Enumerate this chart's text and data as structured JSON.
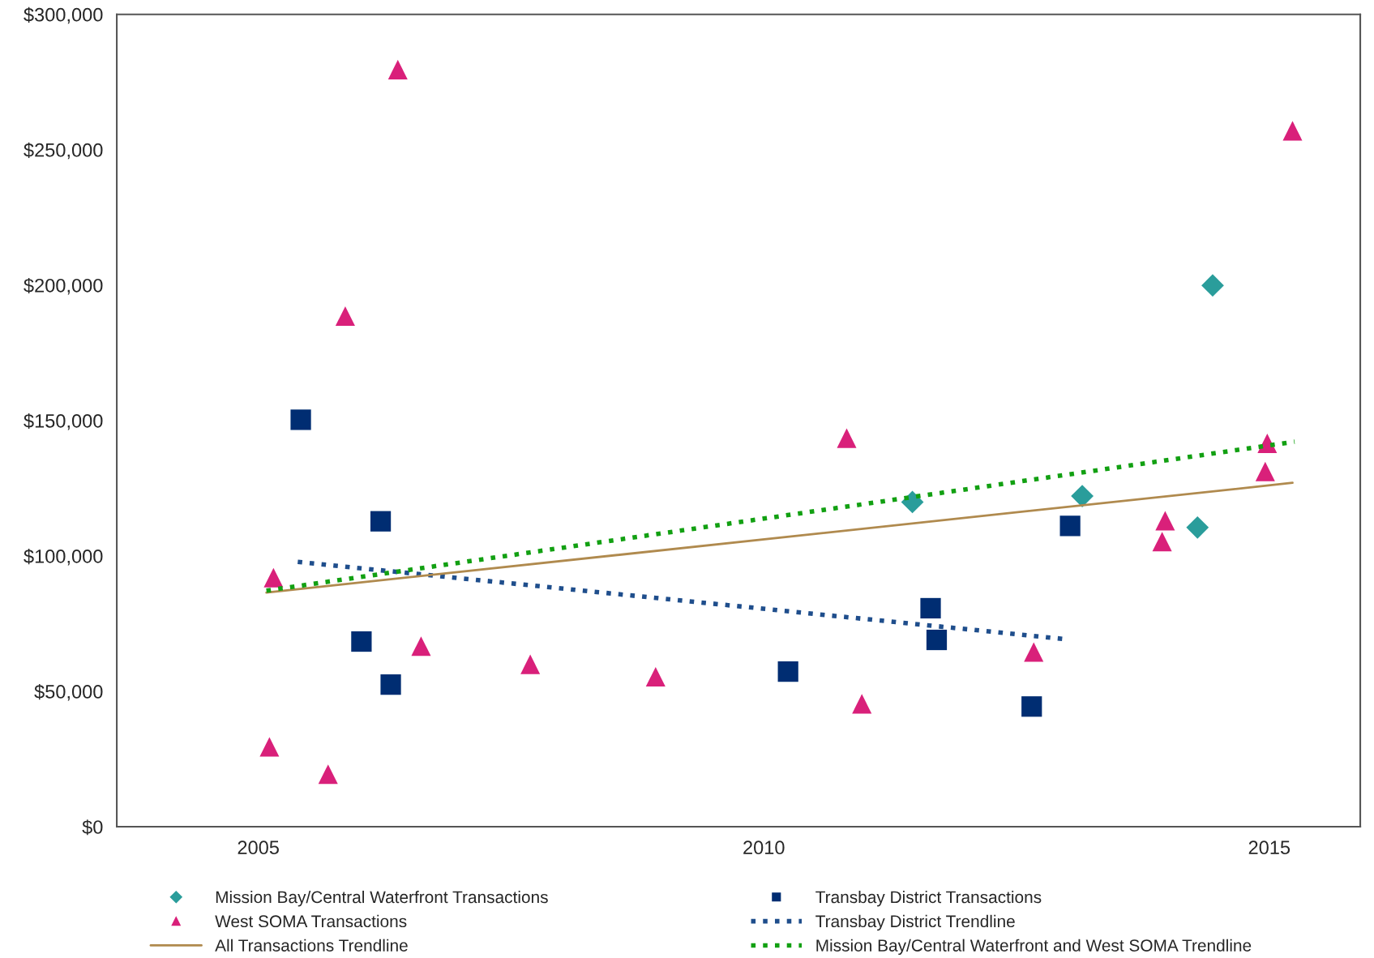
{
  "chart_data": {
    "type": "scatter",
    "xlim": [
      2003.6,
      2015.9
    ],
    "xticks": [
      2005,
      2010,
      2015
    ],
    "ylim": [
      0,
      300000
    ],
    "yticks": [
      {
        "value": 0,
        "label": "$0"
      },
      {
        "value": 50000,
        "label": "$50,000"
      },
      {
        "value": 100000,
        "label": "$100,000"
      },
      {
        "value": 150000,
        "label": "$150,000"
      },
      {
        "value": 200000,
        "label": "$200,000"
      },
      {
        "value": 250000,
        "label": "$250,000"
      },
      {
        "value": 300000,
        "label": "$300,000"
      }
    ],
    "grid": false,
    "legend": "bottom",
    "series": [
      {
        "name": "Mission Bay/Central Waterfront Transactions",
        "type": "scatter",
        "marker": "diamond",
        "color": "#2a9d9b",
        "x": [
          2011.47,
          2013.15,
          2014.29,
          2014.44
        ],
        "values": [
          119900,
          122100,
          110500,
          199900
        ]
      },
      {
        "name": "Transbay District Transactions",
        "type": "scatter",
        "marker": "square",
        "color": "#002d72",
        "x": [
          2005.42,
          2006.02,
          2006.21,
          2006.31,
          2010.24,
          2011.65,
          2011.71,
          2012.65,
          2013.03
        ],
        "values": [
          150300,
          68400,
          112800,
          52500,
          57300,
          80700,
          69000,
          44400,
          111100
        ]
      },
      {
        "name": "West SOMA Transactions",
        "type": "scatter",
        "marker": "triangle",
        "color": "#d9207a",
        "x": [
          2005.11,
          2005.69,
          2005.15,
          2005.86,
          2006.38,
          2006.61,
          2007.69,
          2008.93,
          2010.82,
          2010.97,
          2012.67,
          2013.94,
          2013.97,
          2014.96,
          2014.98,
          2015.23
        ],
        "values": [
          29500,
          19400,
          92000,
          188600,
          279600,
          66700,
          60000,
          55400,
          143500,
          45400,
          64500,
          105300,
          113000,
          131200,
          141600,
          257000
        ]
      },
      {
        "name": "Transbay District Trendline",
        "type": "line",
        "line_style": "dotted",
        "color": "#1f4e8c",
        "x": [
          2005.39,
          2012.98
        ],
        "values": [
          97800,
          69300
        ]
      },
      {
        "name": "All Transactions Trendline",
        "type": "line",
        "line_style": "solid",
        "color": "#b08a4e",
        "x": [
          2005.08,
          2015.23
        ],
        "values": [
          86500,
          127000
        ]
      },
      {
        "name": "Mission Bay/Central Waterfront and West SOMA Trendline",
        "type": "line",
        "line_style": "dotted",
        "color": "#12a012",
        "x": [
          2005.08,
          2015.25
        ],
        "values": [
          87200,
          142200
        ]
      }
    ]
  }
}
